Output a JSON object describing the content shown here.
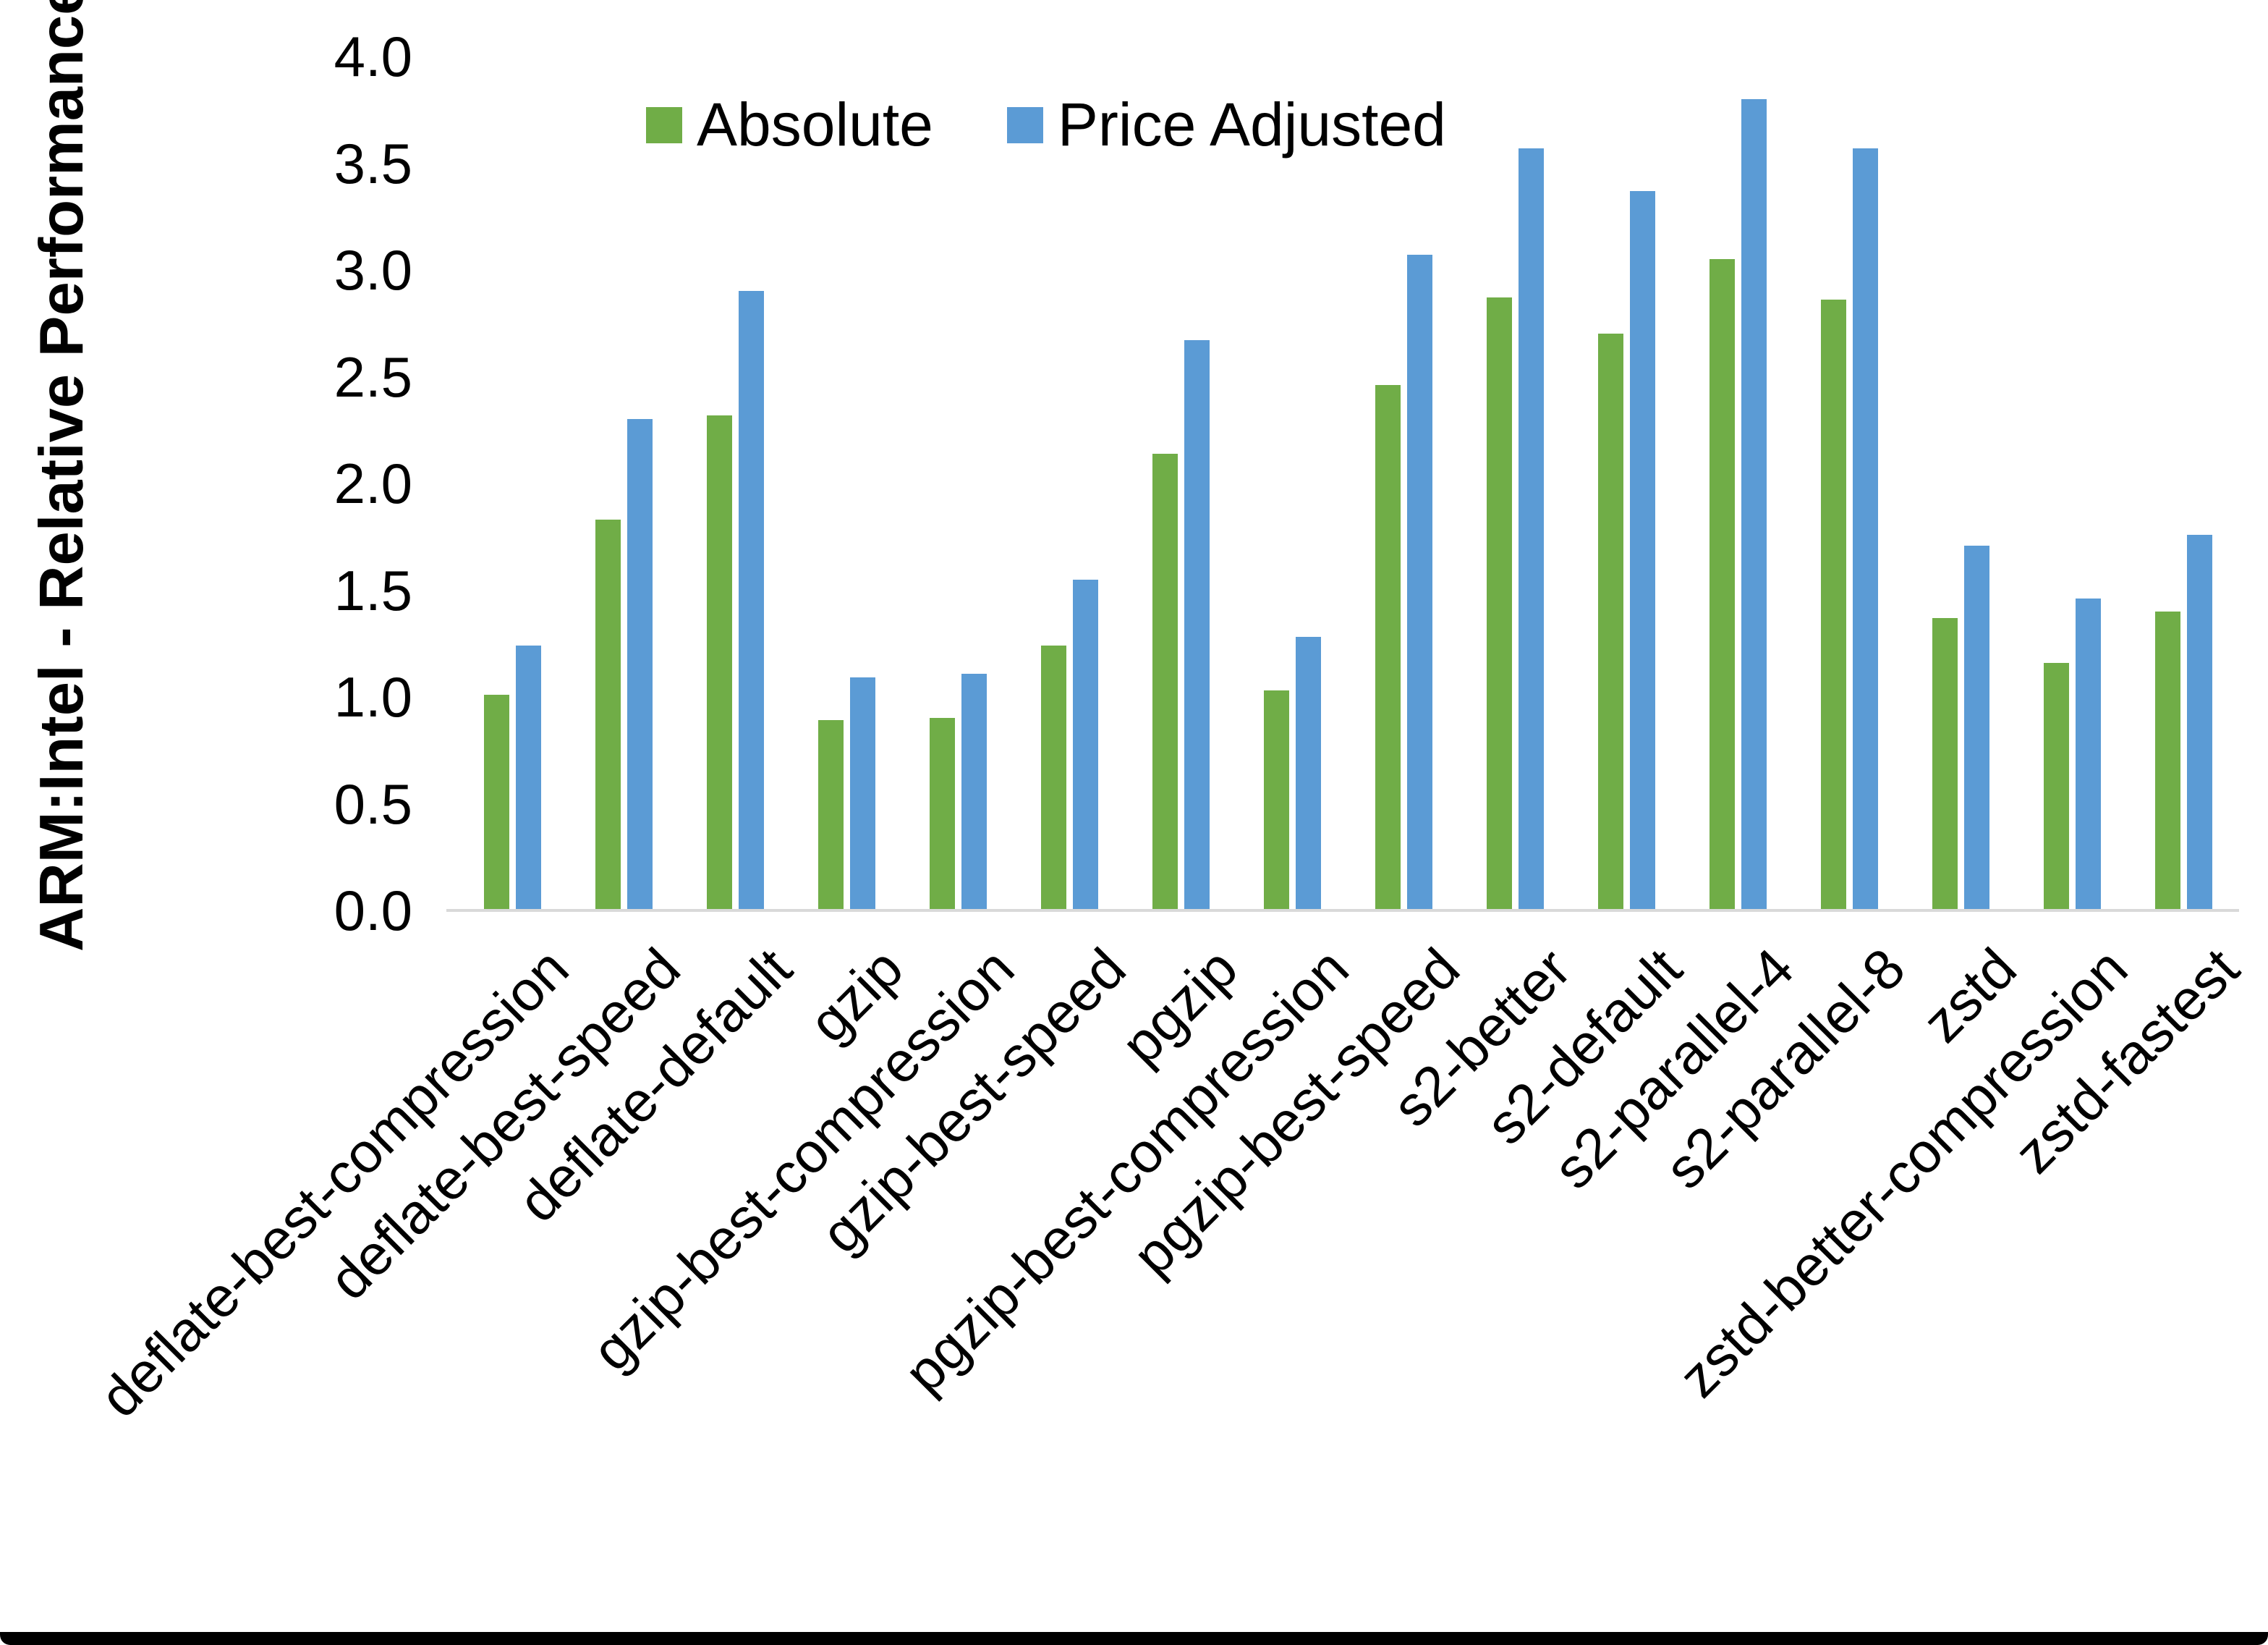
{
  "y_axis": {
    "title": "ARM:Intel - Relative Performance",
    "ticks": [
      "0.0",
      "0.5",
      "1.0",
      "1.5",
      "2.0",
      "2.5",
      "3.0",
      "3.5",
      "4.0"
    ]
  },
  "legend": {
    "items": [
      {
        "label": "Absolute",
        "color": "#70AD47"
      },
      {
        "label": "Price Adjusted",
        "color": "#5B9BD5"
      }
    ]
  },
  "chart_data": {
    "type": "bar",
    "title": "",
    "xlabel": "",
    "ylabel": "ARM:Intel - Relative Performance",
    "ylim": [
      0,
      4.0
    ],
    "ytick_step": 0.5,
    "grid": false,
    "legend_position": "top",
    "categories": [
      "deflate-best-compression",
      "deflate-best-speed",
      "deflate-default",
      "gzip",
      "gzip-best-compression",
      "gzip-best-speed",
      "pgzip",
      "pgzip-best-compression",
      "pgzip-best-speed",
      "s2-better",
      "s2-default",
      "s2-parallel-4",
      "s2-parallel-8",
      "zstd",
      "zstd-better-compression",
      "zstd-fastest"
    ],
    "series": [
      {
        "name": "Absolute",
        "color": "#70AD47",
        "values": [
          1.01,
          1.83,
          2.32,
          0.89,
          0.9,
          1.24,
          2.14,
          1.03,
          2.46,
          2.87,
          2.7,
          3.05,
          2.86,
          1.37,
          1.16,
          1.4
        ]
      },
      {
        "name": "Price Adjusted",
        "color": "#5B9BD5",
        "values": [
          1.24,
          2.3,
          2.9,
          1.09,
          1.11,
          1.55,
          2.67,
          1.28,
          3.07,
          3.57,
          3.37,
          3.8,
          3.57,
          1.71,
          1.46,
          1.76
        ]
      }
    ]
  },
  "colors": {
    "background": "#FFFFFF",
    "text": "#000000",
    "axis_line": "#D9D9D9",
    "bottom_border": "#000000"
  }
}
